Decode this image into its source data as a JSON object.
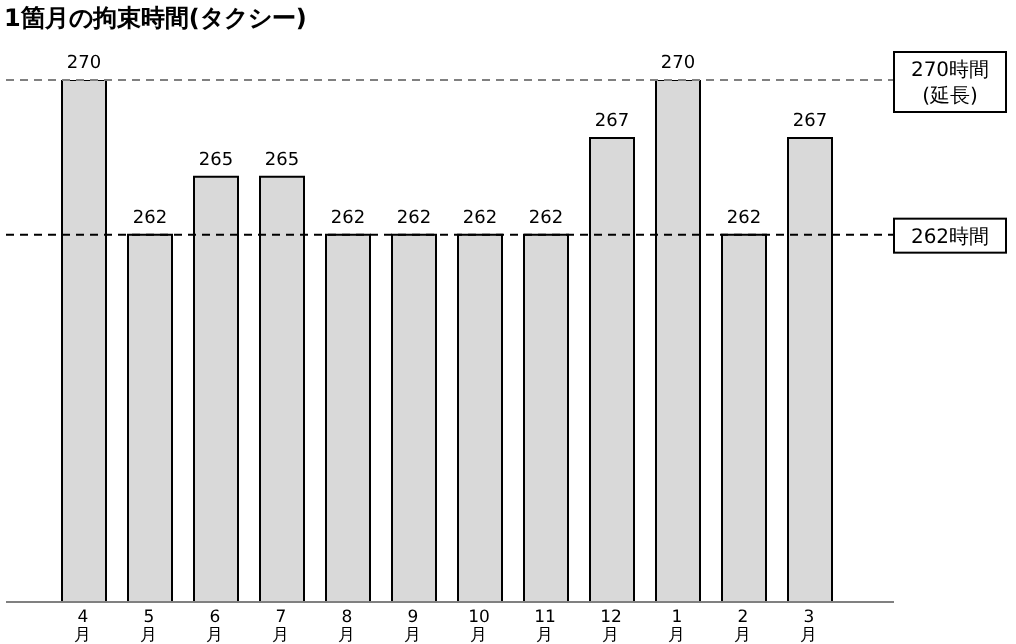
{
  "chart_data": {
    "type": "bar",
    "title": "1箇月の拘束時間(タクシー)",
    "categories": [
      "4月",
      "5月",
      "6月",
      "7月",
      "8月",
      "9月",
      "10月",
      "11月",
      "12月",
      "1月",
      "2月",
      "3月"
    ],
    "values": [
      270,
      262,
      265,
      265,
      262,
      262,
      262,
      262,
      267,
      270,
      262,
      267
    ],
    "color": "#d9d9d9",
    "ylim": [
      243,
      270
    ],
    "tick_labels": "x",
    "data_labels": true,
    "grid": false,
    "legend": false,
    "ref_lines": [
      {
        "axis": "y",
        "value": 270,
        "label": "270時間\n(延長)",
        "color": "#808080",
        "line_style": "dashed"
      },
      {
        "axis": "y",
        "value": 262,
        "label": "262時間",
        "color": "#000000",
        "line_style": "dashed"
      }
    ]
  }
}
